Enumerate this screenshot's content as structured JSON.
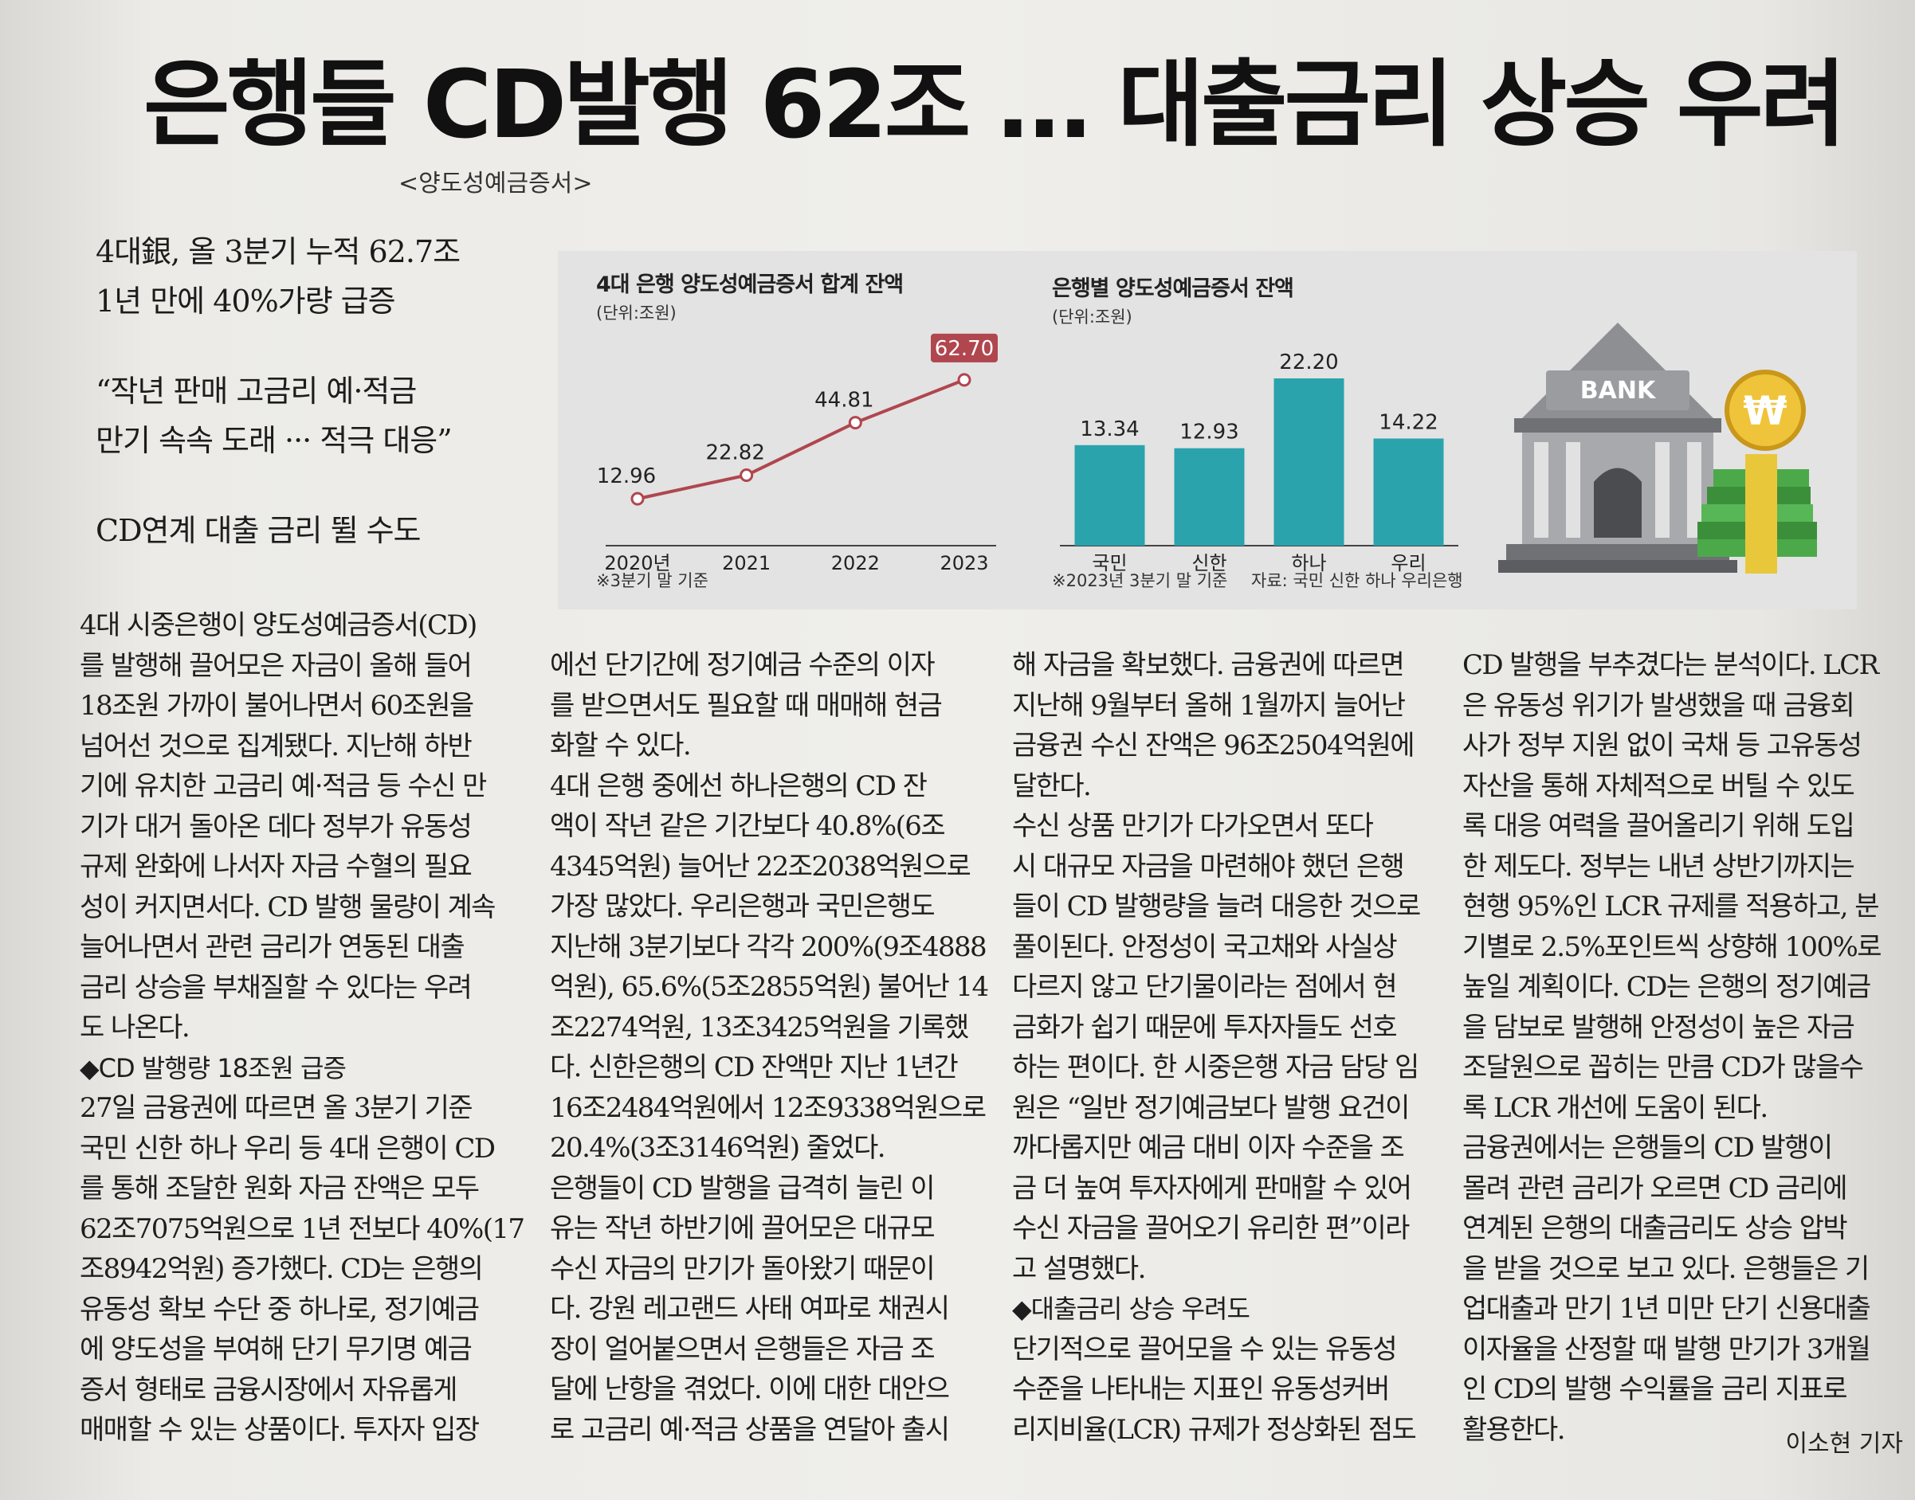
{
  "headline": "은행들 CD발행 62조 … 대출금리 상승 우려",
  "headline_note": "<양도성예금증서>",
  "deck": [
    [
      "4대銀, 올 3분기 누적 62.7조",
      "1년 만에 40%가량 급증"
    ],
    [
      "“작년 판매 고금리 예·적금",
      "만기 속속 도래 ··· 적극 대응”"
    ],
    [
      "CD연계 대출 금리 뛸 수도"
    ]
  ],
  "charts": {
    "left_title": "4대 은행 양도성예금증서 합계 잔액",
    "left_unit": "(단위:조원)",
    "left_footnote": "※3분기 말 기준",
    "right_title": "은행별 양도성예금증서 잔액",
    "right_unit": "(단위:조원)",
    "right_footnote": "※2023년 3분기 말 기준",
    "right_source": "자료: 국민 신한 하나 우리은행",
    "illustration_label": "BANK",
    "coin_symbol": "₩"
  },
  "chart_data": [
    {
      "type": "line",
      "title": "4대 은행 양도성예금증서 합계 잔액",
      "unit": "(단위:조원)",
      "categories": [
        "2020년",
        "2021",
        "2022",
        "2023"
      ],
      "values": [
        12.96,
        22.82,
        44.81,
        62.7
      ],
      "value_labels": [
        "12.96",
        "22.82",
        "44.81",
        "62.70"
      ],
      "color": "#b0464e",
      "highlight_last": true
    },
    {
      "type": "bar",
      "title": "은행별 양도성예금증서 잔액",
      "unit": "(단위:조원)",
      "categories": [
        "국민",
        "신한",
        "하나",
        "우리"
      ],
      "values": [
        13.34,
        12.93,
        22.2,
        14.22
      ],
      "value_labels": [
        "13.34",
        "12.93",
        "22.20",
        "14.22"
      ],
      "color": "#2aa3ad"
    }
  ],
  "columns": [
    [
      {
        "t": "4대 시중은행이 양도성예금증서(CD)"
      },
      {
        "t": "를 발행해 끌어모은 자금이 올해 들어"
      },
      {
        "t": "18조원 가까이 불어나면서 60조원을"
      },
      {
        "t": "넘어선 것으로 집계됐다. 지난해 하반"
      },
      {
        "t": "기에 유치한 고금리 예·적금 등 수신 만"
      },
      {
        "t": "기가 대거 돌아온 데다 정부가 유동성"
      },
      {
        "t": "규제 완화에 나서자 자금 수혈의 필요"
      },
      {
        "t": "성이 커지면서다. CD 발행 물량이 계속"
      },
      {
        "t": "늘어나면서 관련 금리가 연동된 대출"
      },
      {
        "t": "금리 상승을 부채질할 수 있다는 우려"
      },
      {
        "t": "도 나온다."
      },
      {
        "t": "◆CD 발행량 18조원 급증",
        "sub": true
      },
      {
        "t": "27일 금융권에 따르면 올 3분기 기준"
      },
      {
        "t": "국민 신한 하나 우리 등 4대 은행이 CD"
      },
      {
        "t": "를 통해 조달한 원화 자금 잔액은 모두"
      },
      {
        "t": "62조7075억원으로 1년 전보다 40%(17"
      },
      {
        "t": "조8942억원) 증가했다. CD는 은행의"
      },
      {
        "t": "유동성 확보 수단 중 하나로, 정기예금"
      },
      {
        "t": "에 양도성을 부여해 단기 무기명 예금"
      },
      {
        "t": "증서 형태로 금융시장에서 자유롭게"
      },
      {
        "t": "매매할 수 있는 상품이다. 투자자 입장"
      }
    ],
    [
      {
        "t": "에선 단기간에 정기예금 수준의 이자"
      },
      {
        "t": "를 받으면서도 필요할 때 매매해 현금"
      },
      {
        "t": "화할 수 있다."
      },
      {
        "t": "4대 은행 중에선 하나은행의 CD 잔"
      },
      {
        "t": "액이 작년 같은 기간보다 40.8%(6조"
      },
      {
        "t": "4345억원) 늘어난 22조2038억원으로"
      },
      {
        "t": "가장 많았다. 우리은행과 국민은행도"
      },
      {
        "t": "지난해 3분기보다 각각 200%(9조4888"
      },
      {
        "t": "억원), 65.6%(5조2855억원) 불어난 14"
      },
      {
        "t": "조2274억원, 13조3425억원을 기록했"
      },
      {
        "t": "다. 신한은행의 CD 잔액만 지난 1년간"
      },
      {
        "t": "16조2484억원에서 12조9338억원으로"
      },
      {
        "t": "20.4%(3조3146억원) 줄었다."
      },
      {
        "t": "은행들이 CD 발행을 급격히 늘린 이"
      },
      {
        "t": "유는 작년 하반기에 끌어모은 대규모"
      },
      {
        "t": "수신 자금의 만기가 돌아왔기 때문이"
      },
      {
        "t": "다. 강원 레고랜드 사태 여파로 채권시"
      },
      {
        "t": "장이 얼어붙으면서 은행들은 자금 조"
      },
      {
        "t": "달에 난항을 겪었다. 이에 대한 대안으"
      },
      {
        "t": "로 고금리 예·적금 상품을 연달아 출시"
      }
    ],
    [
      {
        "t": "해 자금을 확보했다. 금융권에 따르면"
      },
      {
        "t": "지난해 9월부터 올해 1월까지 늘어난"
      },
      {
        "t": "금융권 수신 잔액은 96조2504억원에"
      },
      {
        "t": "달한다."
      },
      {
        "t": "수신 상품 만기가 다가오면서 또다"
      },
      {
        "t": "시 대규모 자금을 마련해야 했던 은행"
      },
      {
        "t": "들이 CD 발행량을 늘려 대응한 것으로"
      },
      {
        "t": "풀이된다. 안정성이 국고채와 사실상"
      },
      {
        "t": "다르지 않고 단기물이라는 점에서 현"
      },
      {
        "t": "금화가 쉽기 때문에 투자자들도 선호"
      },
      {
        "t": "하는 편이다. 한 시중은행 자금 담당 임"
      },
      {
        "t": "원은 “일반 정기예금보다 발행 요건이"
      },
      {
        "t": "까다롭지만 예금 대비 이자 수준을 조"
      },
      {
        "t": "금 더 높여 투자자에게 판매할 수 있어"
      },
      {
        "t": "수신 자금을 끌어오기 유리한 편”이라"
      },
      {
        "t": "고 설명했다."
      },
      {
        "t": "◆대출금리 상승 우려도",
        "sub": true
      },
      {
        "t": "단기적으로 끌어모을 수 있는 유동성"
      },
      {
        "t": "수준을 나타내는 지표인 유동성커버"
      },
      {
        "t": "리지비율(LCR) 규제가 정상화된 점도"
      }
    ],
    [
      {
        "t": "CD 발행을 부추겼다는 분석이다. LCR"
      },
      {
        "t": "은 유동성 위기가 발생했을 때 금융회"
      },
      {
        "t": "사가 정부 지원 없이 국채 등 고유동성"
      },
      {
        "t": "자산을 통해 자체적으로 버틸 수 있도"
      },
      {
        "t": "록 대응 여력을 끌어올리기 위해 도입"
      },
      {
        "t": "한 제도다. 정부는 내년 상반기까지는"
      },
      {
        "t": "현행 95%인 LCR 규제를 적용하고, 분"
      },
      {
        "t": "기별로 2.5%포인트씩 상향해 100%로"
      },
      {
        "t": "높일 계획이다. CD는 은행의 정기예금"
      },
      {
        "t": "을 담보로 발행해 안정성이 높은 자금"
      },
      {
        "t": "조달원으로 꼽히는 만큼 CD가 많을수"
      },
      {
        "t": "록 LCR 개선에 도움이 된다."
      },
      {
        "t": "금융권에서는 은행들의 CD 발행이"
      },
      {
        "t": "몰려 관련 금리가 오르면 CD 금리에"
      },
      {
        "t": "연계된 은행의 대출금리도 상승 압박"
      },
      {
        "t": "을 받을 것으로 보고 있다. 은행들은 기"
      },
      {
        "t": "업대출과 만기 1년 미만 단기 신용대출"
      },
      {
        "t": "이자율을 산정할 때 발행 만기가 3개월"
      },
      {
        "t": "인 CD의 발행 수익률을 금리 지표로"
      },
      {
        "t": "활용한다."
      }
    ]
  ],
  "byline": "이소현 기자"
}
